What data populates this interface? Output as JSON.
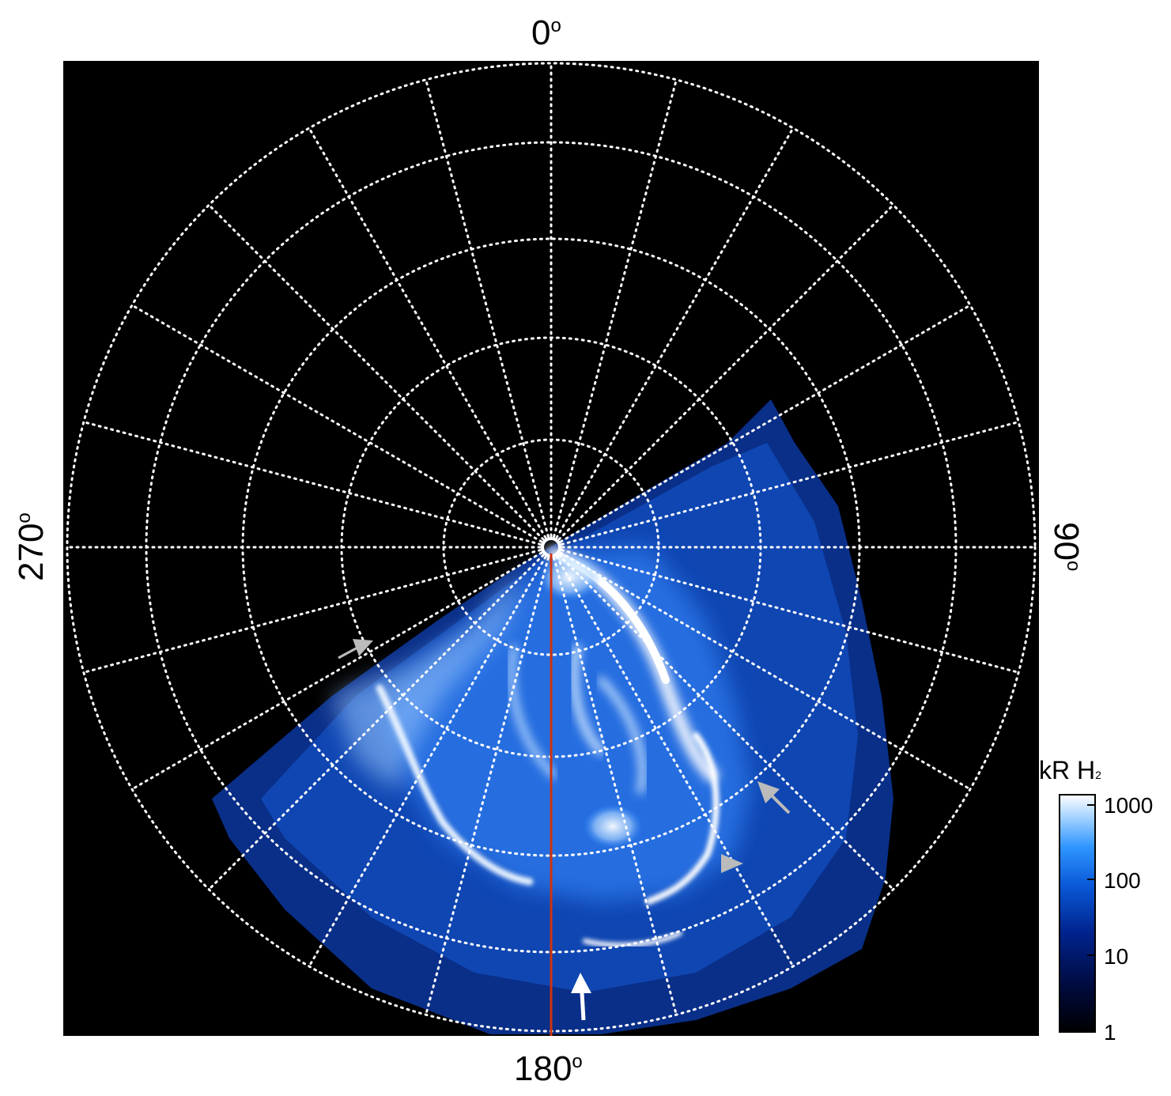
{
  "figure": {
    "directions": {
      "top": "0",
      "right": "90",
      "bottom": "180",
      "left": "270",
      "degree_symbol": "o"
    },
    "colorbar": {
      "title_main": "kR H",
      "title_sub": "2",
      "scale": "log",
      "ticks": [
        "1",
        "10",
        "100",
        "1000"
      ],
      "range": [
        1,
        1000
      ]
    },
    "colors": {
      "background": "#000000",
      "aurora_bright": "#ffffff",
      "aurora_mid": "#1e8cff",
      "aurora_dark": "#001a66",
      "grid": "#ffffff",
      "meridian_line": "#cc3311",
      "arrow_gray": "#bbbbbb",
      "arrow_white": "#ffffff"
    },
    "grid": {
      "style": "dotted",
      "meridians_every_deg": 15,
      "circles": 5
    },
    "annotations": [
      "gray-arrow",
      "gray-arrow",
      "gray-arrowhead",
      "white-arrow"
    ]
  }
}
